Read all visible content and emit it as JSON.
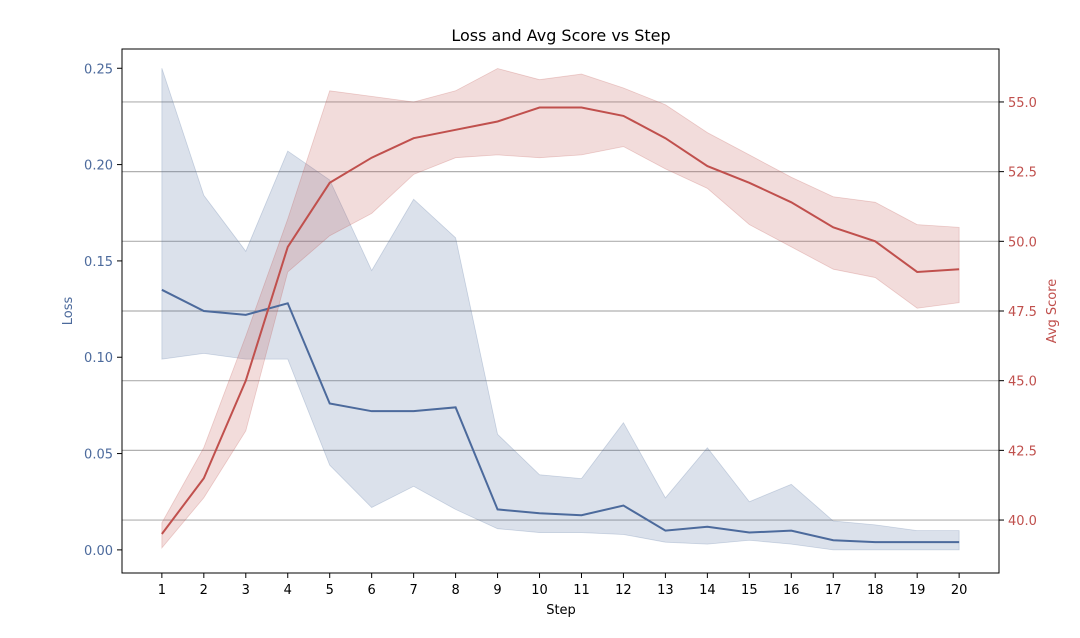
{
  "chart_data": {
    "type": "line",
    "title": "Loss and Avg Score vs Step",
    "xlabel": "Step",
    "ylabel_left": "Loss",
    "ylabel_right": "Avg Score",
    "x": [
      1,
      2,
      3,
      4,
      5,
      6,
      7,
      8,
      9,
      10,
      11,
      12,
      13,
      14,
      15,
      16,
      17,
      18,
      19,
      20
    ],
    "x_ticks": [
      "1",
      "2",
      "3",
      "4",
      "5",
      "6",
      "7",
      "8",
      "9",
      "10",
      "11",
      "12",
      "13",
      "14",
      "15",
      "16",
      "17",
      "18",
      "19",
      "20"
    ],
    "ylim_left": [
      -0.012,
      0.26
    ],
    "ylim_right": [
      38.1,
      56.9
    ],
    "yticks_left": [
      "0.00",
      "0.05",
      "0.10",
      "0.15",
      "0.20",
      "0.25"
    ],
    "yticks_right": [
      "40.0",
      "42.5",
      "45.0",
      "47.5",
      "50.0",
      "52.5",
      "55.0"
    ],
    "grid": "horizontal-right-axis",
    "series": [
      {
        "axis": "left",
        "color": "#4c6a9c",
        "values": [
          0.135,
          0.124,
          0.122,
          0.128,
          0.076,
          0.072,
          0.072,
          0.074,
          0.021,
          0.019,
          0.018,
          0.023,
          0.01,
          0.012,
          0.009,
          0.01,
          0.005,
          0.004,
          0.004,
          0.004
        ],
        "lower": [
          0.099,
          0.102,
          0.099,
          0.099,
          0.044,
          0.022,
          0.033,
          0.021,
          0.011,
          0.009,
          0.009,
          0.008,
          0.004,
          0.003,
          0.005,
          0.003,
          0.0,
          0.0,
          0.0,
          0.0
        ],
        "upper": [
          0.25,
          0.184,
          0.155,
          0.207,
          0.192,
          0.145,
          0.182,
          0.162,
          0.06,
          0.039,
          0.037,
          0.066,
          0.027,
          0.053,
          0.025,
          0.034,
          0.015,
          0.013,
          0.01,
          0.01
        ]
      },
      {
        "axis": "right",
        "color": "#c0504d",
        "values": [
          39.5,
          41.5,
          45.0,
          49.8,
          52.1,
          53.0,
          53.7,
          54.0,
          54.3,
          54.8,
          54.8,
          54.5,
          53.7,
          52.7,
          52.1,
          51.4,
          50.5,
          50.0,
          48.9,
          49.0
        ],
        "lower": [
          39.0,
          40.8,
          43.2,
          48.9,
          50.2,
          51.0,
          52.4,
          53.0,
          53.1,
          53.0,
          53.1,
          53.4,
          52.6,
          51.9,
          50.6,
          49.8,
          49.0,
          48.7,
          47.6,
          47.8
        ],
        "upper": [
          39.9,
          42.6,
          46.6,
          50.8,
          55.4,
          55.2,
          55.0,
          55.4,
          56.2,
          55.8,
          56.0,
          55.5,
          54.9,
          53.9,
          53.1,
          52.3,
          51.6,
          51.4,
          50.6,
          50.5
        ]
      }
    ]
  }
}
